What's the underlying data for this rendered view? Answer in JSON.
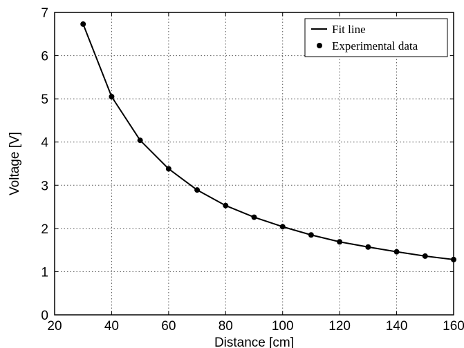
{
  "chart_data": {
    "type": "line",
    "title": "",
    "xlabel": "Distance [cm]",
    "ylabel": "Voltage [V]",
    "xlim": [
      20,
      160
    ],
    "ylim": [
      0,
      7
    ],
    "xticks": [
      20,
      40,
      60,
      80,
      100,
      120,
      140,
      160
    ],
    "yticks": [
      0,
      1,
      2,
      3,
      4,
      5,
      6,
      7
    ],
    "grid": true,
    "legend_position": "top-right",
    "series": [
      {
        "name": "Fit line",
        "style": "line",
        "color": "#000000",
        "x": [
          30,
          40,
          50,
          60,
          70,
          80,
          90,
          100,
          110,
          120,
          130,
          140,
          150,
          160
        ],
        "y": [
          6.73,
          5.05,
          4.04,
          3.38,
          2.89,
          2.53,
          2.26,
          2.04,
          1.85,
          1.69,
          1.57,
          1.46,
          1.36,
          1.28
        ]
      },
      {
        "name": "Experimental data",
        "style": "markers",
        "color": "#000000",
        "x": [
          30,
          40,
          50,
          60,
          70,
          80,
          90,
          100,
          110,
          120,
          130,
          140,
          150,
          160
        ],
        "y": [
          6.73,
          5.05,
          4.04,
          3.38,
          2.89,
          2.53,
          2.26,
          2.04,
          1.85,
          1.69,
          1.57,
          1.46,
          1.36,
          1.28
        ]
      }
    ]
  }
}
